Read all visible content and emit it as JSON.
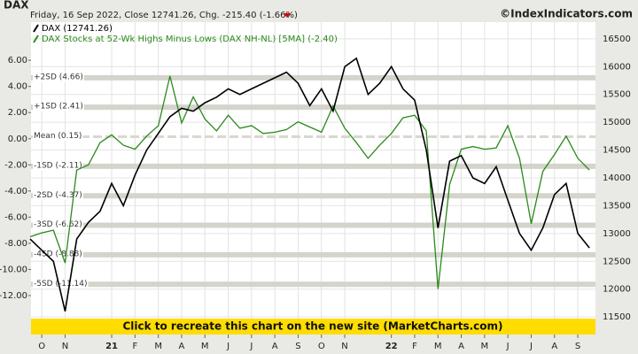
{
  "chart_data": {
    "type": "line",
    "title": "DAX",
    "subtitle": "Friday, 16 Sep 2022, Close 12741.26, Chg. -215.40 (-1.66%)",
    "source": "©IndexIndicators.com",
    "annotation": "Click to recreate this chart on the new site (MarketCharts.com)",
    "categories": [
      null,
      "O",
      null,
      "N",
      null,
      null,
      null,
      "21",
      null,
      "F",
      null,
      "M",
      null,
      "A",
      null,
      "M",
      null,
      "J",
      null,
      "J",
      null,
      "A",
      null,
      "S",
      null,
      "O",
      null,
      "N",
      null,
      null,
      null,
      "22",
      null,
      "F",
      null,
      "M",
      null,
      "A",
      null,
      "M",
      null,
      "J",
      null,
      "J",
      null,
      "A",
      null,
      "S",
      null
    ],
    "series": [
      {
        "name": "DAX Stocks at 52-Wk Highs Minus Lows (DAX NH-NL) [5MA] (-2.40)",
        "color": "#2a8a1a",
        "values": [
          -7.5,
          -7.2,
          -7.0,
          -9.5,
          -2.4,
          -2.0,
          -0.3,
          0.3,
          -0.5,
          -0.8,
          0.2,
          1.0,
          4.8,
          1.2,
          3.2,
          1.5,
          0.6,
          1.8,
          0.8,
          1.0,
          0.4,
          0.5,
          0.7,
          1.3,
          0.9,
          0.5,
          2.5,
          0.8,
          -0.3,
          -1.5,
          -0.5,
          0.4,
          1.6,
          1.8,
          0.6,
          -11.5,
          -3.5,
          -0.8,
          -0.6,
          -0.8,
          -0.7,
          1.0,
          -1.5,
          -6.5,
          -2.5,
          -1.2,
          0.2,
          -1.5,
          -2.4
        ]
      },
      {
        "name": "DAX (12741.26)",
        "color": "#000000",
        "axis": "y2",
        "values": [
          12900,
          12700,
          12500,
          11600,
          12900,
          13200,
          13400,
          13900,
          13500,
          14050,
          14500,
          14800,
          15100,
          15250,
          15200,
          15350,
          15450,
          15600,
          15500,
          15600,
          15700,
          15800,
          15900,
          15700,
          15300,
          15600,
          15200,
          16000,
          16150,
          15500,
          15700,
          16000,
          15600,
          15400,
          14500,
          13100,
          14300,
          14400,
          14000,
          13900,
          14200,
          13600,
          13000,
          12700,
          13100,
          13700,
          13900,
          13000,
          12741.26
        ]
      }
    ],
    "ylim": [
      -13.76,
      8.92
    ],
    "yticks": [
      {
        "value": 6,
        "label": "6.00"
      },
      {
        "value": 4,
        "label": "4.00"
      },
      {
        "value": 2,
        "label": "2.00"
      },
      {
        "value": 0,
        "label": "0.00"
      },
      {
        "value": -2,
        "label": "-2.00"
      },
      {
        "value": -4,
        "label": "-4.00"
      },
      {
        "value": -6,
        "label": "-6.00"
      },
      {
        "value": -8,
        "label": "-8.00"
      },
      {
        "value": -10,
        "label": "-10.00"
      },
      {
        "value": -12,
        "label": "-12.00"
      }
    ],
    "y2lim": [
      11470,
      16800
    ],
    "y2ticks": [
      11500,
      12000,
      12500,
      13000,
      13500,
      14000,
      14500,
      15000,
      15500,
      16000,
      16500
    ],
    "bands": [
      {
        "label": "+2SD (4.66)",
        "value": 4.66
      },
      {
        "label": "+1SD (2.41)",
        "value": 2.41
      },
      {
        "label": "Mean (0.15)",
        "value": 0.15
      },
      {
        "label": "-1SD (-2.11)",
        "value": -2.11
      },
      {
        "label": "-2SD (-4.37)",
        "value": -4.37
      },
      {
        "label": "-3SD (-6.62)",
        "value": -6.62
      },
      {
        "label": "-4SD (-8.88)",
        "value": -8.88
      },
      {
        "label": "-5SD (-11.14)",
        "value": -11.14
      }
    ],
    "grid": true
  }
}
